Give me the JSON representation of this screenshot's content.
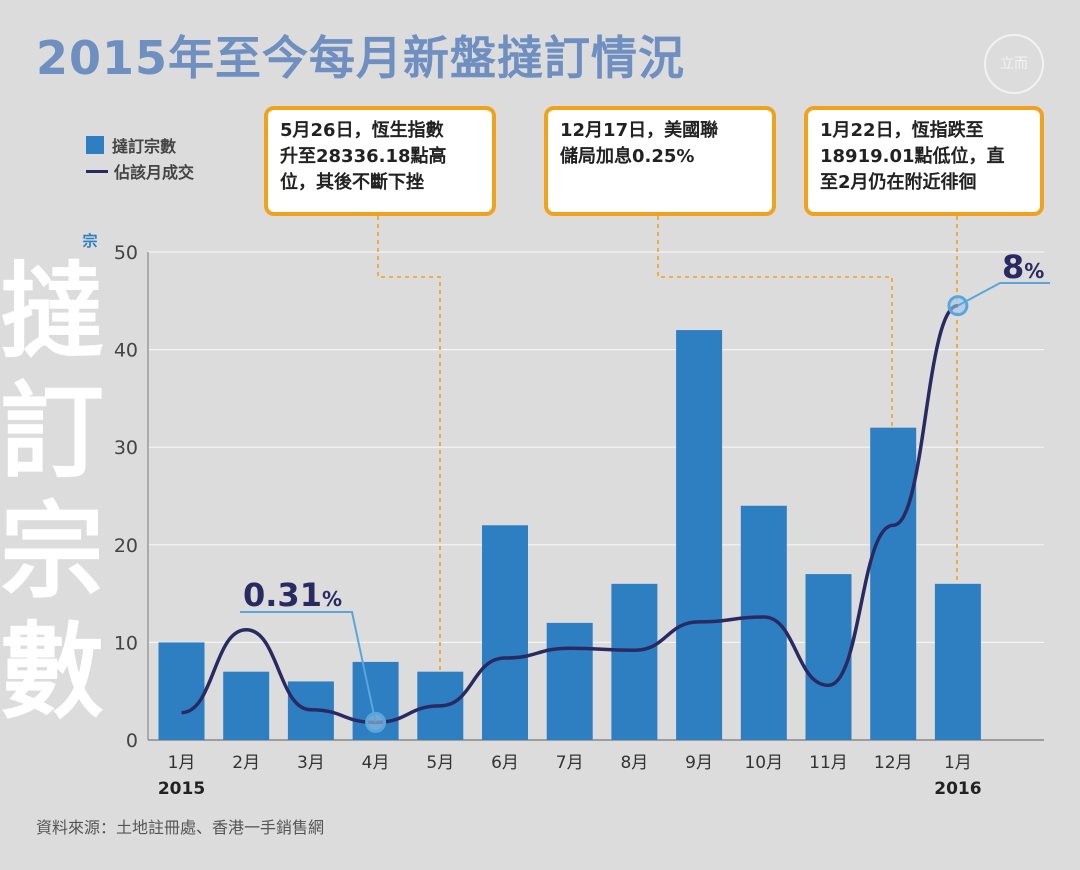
{
  "title": "2015年至今每月新盤撻訂情況",
  "logo_text": "立而",
  "legend": {
    "bars": "撻訂宗數",
    "line": "佔該月成交"
  },
  "side_word": [
    "撻",
    "訂",
    "宗",
    "數"
  ],
  "y_unit": "宗",
  "source": "資料來源：土地註冊處、香港一手銷售網",
  "callouts": [
    {
      "lines": [
        "5月26日，恆生指數",
        "升至28336.18點高",
        "位，其後不斷下挫"
      ]
    },
    {
      "lines": [
        "12月17日，美國聯",
        "儲局加息0.25%"
      ]
    },
    {
      "lines": [
        "1月22日，恆指跌至",
        "18919.01點低位，直",
        "至2月仍在附近徘徊"
      ]
    }
  ],
  "chart_data": {
    "type": "bar",
    "categories": [
      "1月",
      "2月",
      "3月",
      "4月",
      "5月",
      "6月",
      "7月",
      "8月",
      "9月",
      "10月",
      "11月",
      "12月",
      "1月"
    ],
    "year_labels": [
      "2015",
      "",
      "",
      "",
      "",
      "",
      "",
      "",
      "",
      "",
      "",
      "",
      "2016"
    ],
    "series": [
      {
        "name": "撻訂宗數",
        "type": "bar",
        "color": "#2e7fc1",
        "values": [
          10,
          7,
          6,
          8,
          7,
          22,
          12,
          16,
          42,
          24,
          17,
          32,
          16
        ]
      },
      {
        "name": "佔該月成交",
        "type": "line",
        "color": "#2a2a63",
        "values": [
          2.8,
          11.3,
          3.1,
          1.8,
          3.5,
          8.4,
          9.4,
          9.2,
          12.1,
          12.6,
          5.6,
          22,
          44.5
        ]
      }
    ],
    "ylim": [
      0,
      50
    ],
    "yticks": [
      0,
      10,
      20,
      30,
      40,
      50
    ],
    "grid": true,
    "annotations": [
      {
        "index": 3,
        "value": "0.31",
        "unit": "%"
      },
      {
        "index": 12,
        "value": "8",
        "unit": "%"
      }
    ]
  }
}
